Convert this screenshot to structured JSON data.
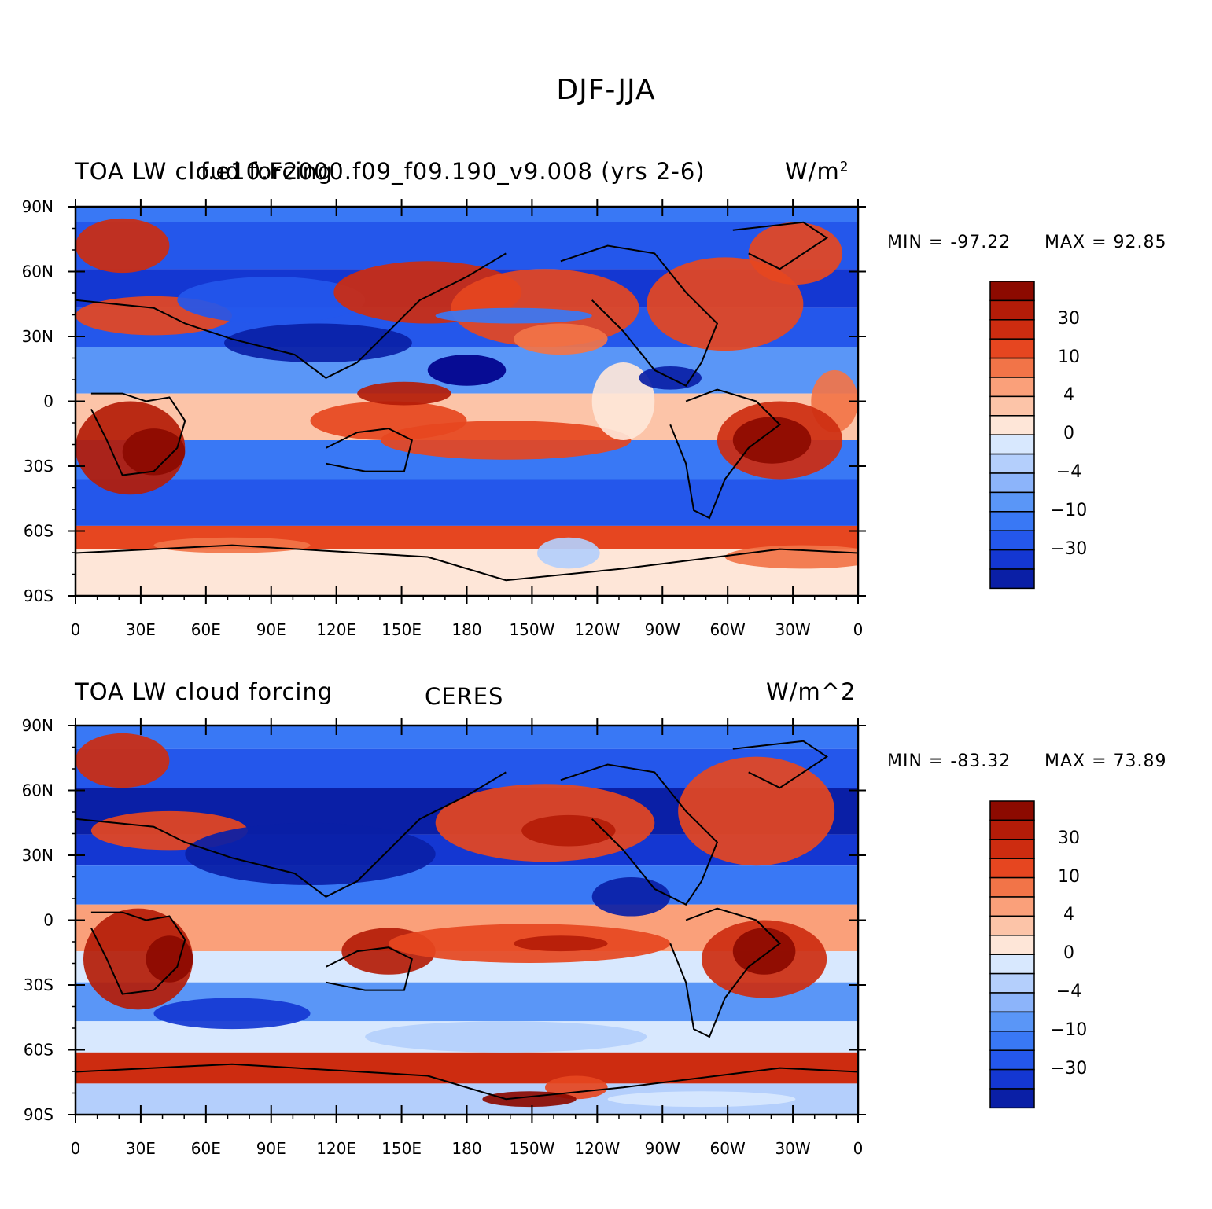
{
  "title": "DJF-JJA",
  "palette": [
    "#00008b",
    "#0a1fa6",
    "#1437d2",
    "#2457eb",
    "#3978f5",
    "#5a96f7",
    "#8cb4fa",
    "#b4cffc",
    "#d8e8fe",
    "#fee6d8",
    "#fcc4a8",
    "#faa07a",
    "#f27448",
    "#e64620",
    "#cd2c10",
    "#b41c08",
    "#8c0a00"
  ],
  "colorbar_labels": [
    "30",
    "10",
    "4",
    "0",
    "-4",
    "-10",
    "-30"
  ],
  "lat_labels": [
    "90N",
    "60N",
    "30N",
    "0",
    "30S",
    "60S",
    "90S"
  ],
  "lon_labels": [
    "0",
    "30E",
    "60E",
    "90E",
    "120E",
    "150E",
    "180",
    "150W",
    "120W",
    "90W",
    "60W",
    "30W",
    "0"
  ],
  "panels": [
    {
      "left_label": "TOA LW cloud forcing",
      "center_label": "f.e10.F2000.f09_f09.190_v9.008 (yrs 2-6)",
      "units_label": "W/m",
      "units_sup": "2",
      "min_label": "MIN = -97.22",
      "max_label": "MAX =  92.85"
    },
    {
      "left_label": "TOA LW cloud forcing",
      "center_label": "CERES",
      "units_label": "W/m^2",
      "units_sup": "",
      "min_label": "MIN = -83.32",
      "max_label": "MAX =  73.89"
    }
  ]
}
